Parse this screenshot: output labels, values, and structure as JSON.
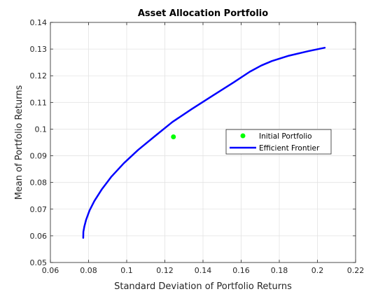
{
  "chart_data": {
    "type": "line",
    "title": "Asset Allocation Portfolio",
    "xlabel": "Standard Deviation of Portfolio Returns",
    "ylabel": "Mean of Portfolio Returns",
    "xlim": [
      0.06,
      0.22
    ],
    "ylim": [
      0.05,
      0.14
    ],
    "xticks": [
      0.06,
      0.08,
      0.1,
      0.12,
      0.14,
      0.16,
      0.18,
      0.2,
      0.22
    ],
    "xtick_labels": [
      "0.06",
      "0.08",
      "0.1",
      "0.12",
      "0.14",
      "0.16",
      "0.18",
      "0.2",
      "0.22"
    ],
    "yticks": [
      0.05,
      0.06,
      0.07,
      0.08,
      0.09,
      0.1,
      0.11,
      0.12,
      0.13,
      0.14
    ],
    "ytick_labels": [
      "0.05",
      "0.06",
      "0.07",
      "0.08",
      "0.09",
      "0.1",
      "0.11",
      "0.12",
      "0.13",
      "0.14"
    ],
    "grid": true,
    "legend_position": "center-right",
    "series": [
      {
        "name": "Initial Portfolio",
        "kind": "scatter",
        "color": "#00ff00",
        "points": [
          [
            0.1245,
            0.0971
          ]
        ]
      },
      {
        "name": "Efficient Frontier",
        "kind": "line",
        "color": "#0000ff",
        "points": [
          [
            0.0772,
            0.0592
          ],
          [
            0.0773,
            0.0615
          ],
          [
            0.0778,
            0.0635
          ],
          [
            0.0787,
            0.066
          ],
          [
            0.0805,
            0.0695
          ],
          [
            0.083,
            0.073
          ],
          [
            0.087,
            0.0775
          ],
          [
            0.092,
            0.0822
          ],
          [
            0.0985,
            0.0872
          ],
          [
            0.106,
            0.0922
          ],
          [
            0.115,
            0.0975
          ],
          [
            0.124,
            0.1027
          ],
          [
            0.134,
            0.1075
          ],
          [
            0.145,
            0.1125
          ],
          [
            0.156,
            0.1175
          ],
          [
            0.1645,
            0.1215
          ],
          [
            0.1705,
            0.1238
          ],
          [
            0.176,
            0.1255
          ],
          [
            0.185,
            0.1275
          ],
          [
            0.195,
            0.1292
          ],
          [
            0.2038,
            0.1305
          ]
        ]
      }
    ]
  }
}
